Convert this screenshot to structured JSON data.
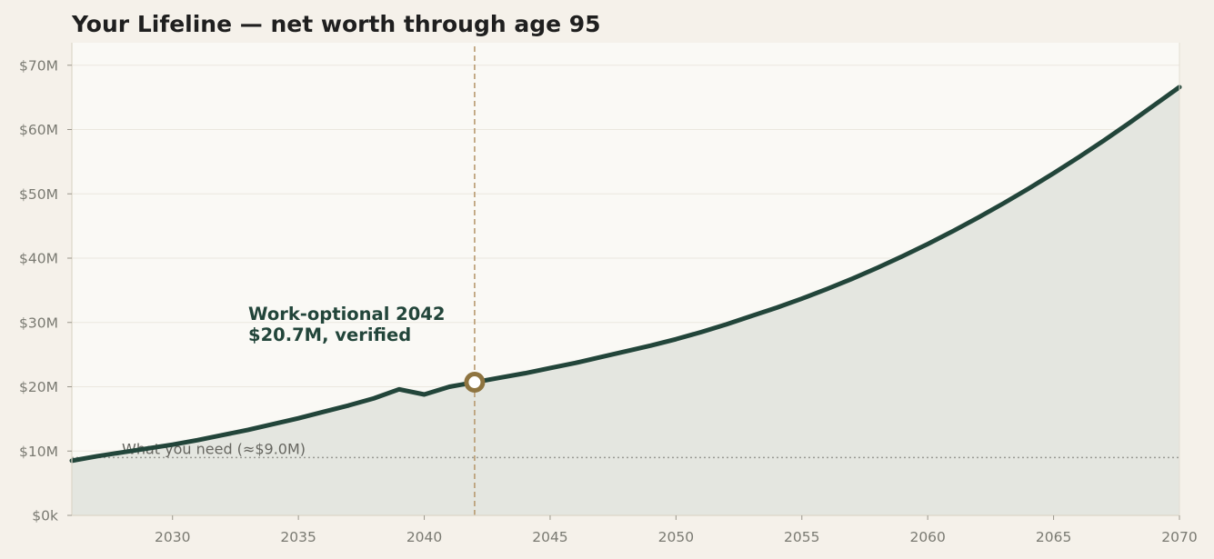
{
  "title": "Your Lifeline — net worth through age 95",
  "colors": {
    "page_bg": "#f5f1ea",
    "plot_bg": "#faf9f5",
    "line": "#22453a",
    "area": "#e4e6e0",
    "grid": "#ebe7df",
    "accent": "#8e7440",
    "dashed_marker": "#b89a70",
    "need_line": "#9a9a94"
  },
  "chart_data": {
    "type": "area",
    "title": "Your Lifeline — net worth through age 95",
    "xlabel": "",
    "ylabel": "",
    "xlim": [
      2026,
      2070
    ],
    "ylim": [
      0,
      73.5
    ],
    "x_ticks": [
      2030,
      2035,
      2040,
      2045,
      2050,
      2055,
      2060,
      2065,
      2070
    ],
    "x_tick_labels": [
      "2030",
      "2035",
      "2040",
      "2045",
      "2050",
      "2055",
      "2060",
      "2065",
      "2070"
    ],
    "y_ticks": [
      0,
      10,
      20,
      30,
      40,
      50,
      60,
      70
    ],
    "y_tick_labels": [
      "$0k",
      "$10M",
      "$20M",
      "$30M",
      "$40M",
      "$50M",
      "$60M",
      "$70M"
    ],
    "grid": true,
    "series": [
      {
        "x": [
          2026,
          2027,
          2028,
          2029,
          2030,
          2031,
          2032,
          2033,
          2034,
          2035,
          2036,
          2037,
          2038,
          2039,
          2040,
          2041,
          2042,
          2043,
          2044,
          2045,
          2046,
          2047,
          2048,
          2049,
          2050,
          2051,
          2052,
          2053,
          2054,
          2055,
          2056,
          2057,
          2058,
          2059,
          2060,
          2061,
          2062,
          2063,
          2064,
          2065,
          2066,
          2067,
          2068,
          2069,
          2070
        ],
        "y": [
          8.5,
          9.2,
          9.8,
          10.4,
          11.0,
          11.7,
          12.5,
          13.3,
          14.2,
          15.1,
          16.1,
          17.1,
          18.2,
          19.6,
          18.8,
          20.0,
          20.7,
          21.4,
          22.1,
          22.9,
          23.7,
          24.6,
          25.5,
          26.4,
          27.4,
          28.5,
          29.7,
          31.0,
          32.3,
          33.7,
          35.2,
          36.8,
          38.5,
          40.3,
          42.2,
          44.2,
          46.3,
          48.5,
          50.8,
          53.2,
          55.7,
          58.3,
          61.0,
          63.8,
          66.6
        ]
      }
    ],
    "reference_line": {
      "y": 9.0,
      "label": "What you need (≈$9.0M)"
    },
    "milestone": {
      "x": 2042,
      "y": 20.7,
      "label_line1": "Work-optional 2042",
      "label_line2": "$20.7M, verified"
    }
  }
}
